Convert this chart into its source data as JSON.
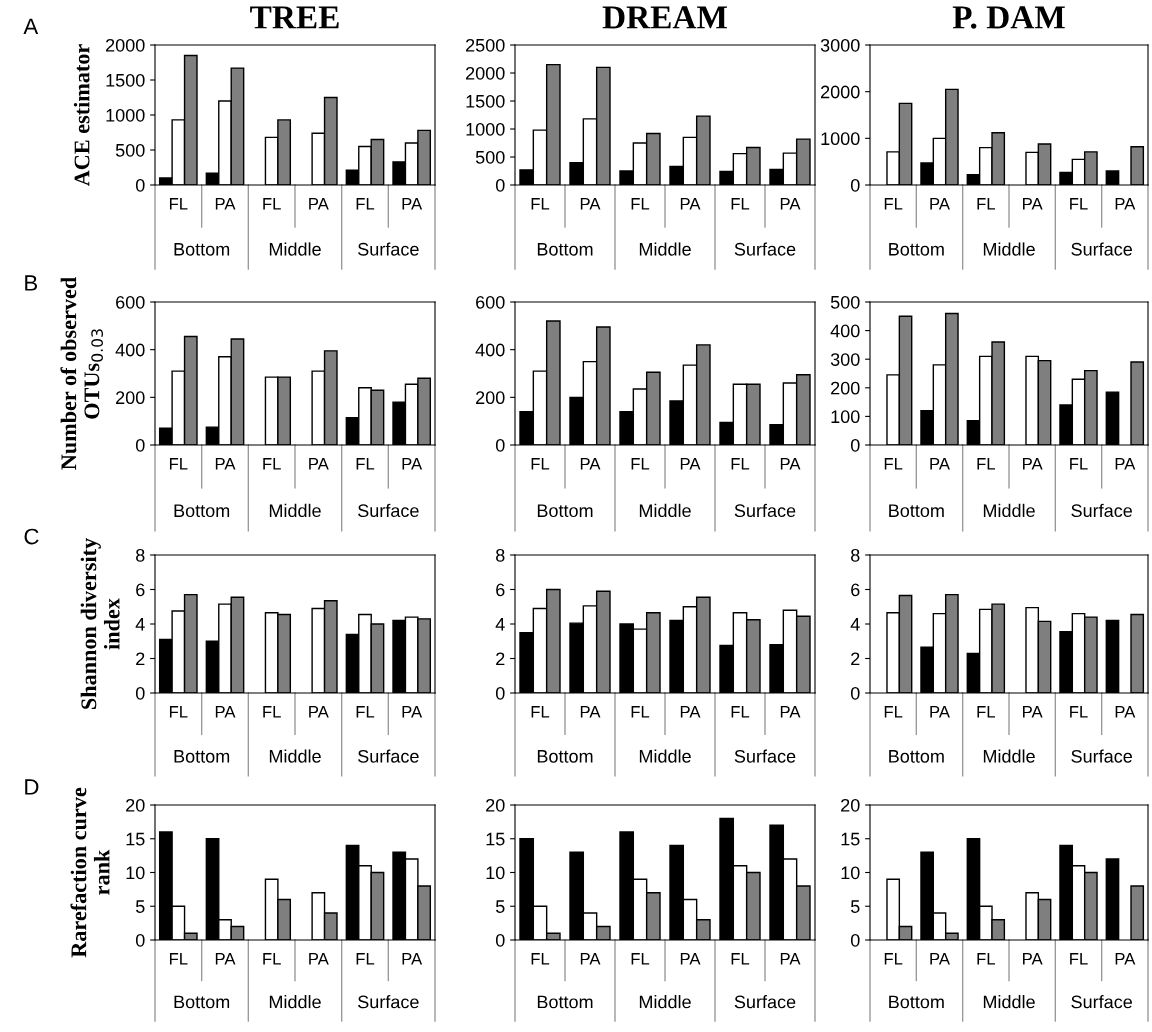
{
  "chart_data": [
    {
      "type": "bar",
      "title": "TREE",
      "ylabel": "ACE estimator",
      "annotations": [
        "A",
        "Bottom",
        "Middle",
        "Surface"
      ],
      "categories": [
        "FL",
        "PA",
        "FL",
        "PA",
        "FL",
        "PA"
      ],
      "ylim": [
        0,
        2000
      ],
      "yticks": [
        0,
        500,
        1000,
        1500,
        2000
      ],
      "grid": false,
      "legend": false,
      "series": [
        {
          "color": "#000000",
          "values": [
            100,
            170,
            null,
            null,
            210,
            330
          ]
        },
        {
          "color": "#ffffff",
          "values": [
            930,
            1200,
            680,
            740,
            550,
            600
          ]
        },
        {
          "color": "#7f7f7f",
          "values": [
            1850,
            1670,
            930,
            1250,
            650,
            780
          ]
        }
      ]
    },
    {
      "type": "bar",
      "title": "DREAM",
      "annotations": [
        "Bottom",
        "Middle",
        "Surface"
      ],
      "categories": [
        "FL",
        "PA",
        "FL",
        "PA",
        "FL",
        "PA"
      ],
      "ylim": [
        0,
        2500
      ],
      "yticks": [
        0,
        500,
        1000,
        1500,
        2000,
        2500
      ],
      "grid": false,
      "legend": false,
      "series": [
        {
          "color": "#000000",
          "values": [
            270,
            400,
            250,
            330,
            240,
            280
          ]
        },
        {
          "color": "#ffffff",
          "values": [
            980,
            1180,
            750,
            850,
            560,
            570
          ]
        },
        {
          "color": "#7f7f7f",
          "values": [
            2150,
            2100,
            920,
            1230,
            670,
            820
          ]
        }
      ]
    },
    {
      "type": "bar",
      "title": "P. DAM",
      "annotations": [
        "Bottom",
        "Middle",
        "Surface"
      ],
      "categories": [
        "FL",
        "PA",
        "FL",
        "PA",
        "FL",
        "PA"
      ],
      "ylim": [
        0,
        3000
      ],
      "yticks": [
        0,
        1000,
        2000,
        3000
      ],
      "grid": false,
      "legend": false,
      "series": [
        {
          "color": "#000000",
          "values": [
            null,
            470,
            220,
            null,
            270,
            300
          ]
        },
        {
          "color": "#ffffff",
          "values": [
            710,
            1000,
            800,
            700,
            550,
            null
          ]
        },
        {
          "color": "#7f7f7f",
          "values": [
            1750,
            2050,
            1120,
            880,
            710,
            820
          ]
        }
      ]
    },
    {
      "type": "bar",
      "ylabel": "Number of observed\nOTUs$_{0.03}$",
      "annotations": [
        "B",
        "Bottom",
        "Middle",
        "Surface"
      ],
      "categories": [
        "FL",
        "PA",
        "FL",
        "PA",
        "FL",
        "PA"
      ],
      "ylim": [
        0,
        600
      ],
      "yticks": [
        0,
        200,
        400,
        600
      ],
      "grid": false,
      "legend": false,
      "series": [
        {
          "color": "#000000",
          "values": [
            70,
            75,
            null,
            null,
            115,
            180
          ]
        },
        {
          "color": "#ffffff",
          "values": [
            310,
            370,
            285,
            310,
            240,
            255
          ]
        },
        {
          "color": "#7f7f7f",
          "values": [
            455,
            445,
            285,
            395,
            230,
            280
          ]
        }
      ]
    },
    {
      "type": "bar",
      "annotations": [
        "Bottom",
        "Middle",
        "Surface"
      ],
      "categories": [
        "FL",
        "PA",
        "FL",
        "PA",
        "FL",
        "PA"
      ],
      "ylim": [
        0,
        600
      ],
      "yticks": [
        0,
        200,
        400,
        600
      ],
      "grid": false,
      "legend": false,
      "series": [
        {
          "color": "#000000",
          "values": [
            140,
            200,
            140,
            185,
            95,
            85
          ]
        },
        {
          "color": "#ffffff",
          "values": [
            310,
            350,
            235,
            335,
            255,
            260
          ]
        },
        {
          "color": "#7f7f7f",
          "values": [
            520,
            495,
            305,
            420,
            255,
            295
          ]
        }
      ]
    },
    {
      "type": "bar",
      "annotations": [
        "Bottom",
        "Middle",
        "Surface"
      ],
      "categories": [
        "FL",
        "PA",
        "FL",
        "PA",
        "FL",
        "PA"
      ],
      "ylim": [
        0,
        500
      ],
      "yticks": [
        0,
        100,
        200,
        300,
        400,
        500
      ],
      "grid": false,
      "legend": false,
      "series": [
        {
          "color": "#000000",
          "values": [
            null,
            120,
            85,
            null,
            140,
            185
          ]
        },
        {
          "color": "#ffffff",
          "values": [
            245,
            280,
            310,
            310,
            230,
            null
          ]
        },
        {
          "color": "#7f7f7f",
          "values": [
            450,
            460,
            360,
            295,
            260,
            290
          ]
        }
      ]
    },
    {
      "type": "bar",
      "ylabel": "Shannon diversity\nindex",
      "annotations": [
        "C",
        "Bottom",
        "Middle",
        "Surface"
      ],
      "categories": [
        "FL",
        "PA",
        "FL",
        "PA",
        "FL",
        "PA"
      ],
      "ylim": [
        0,
        8
      ],
      "yticks": [
        0,
        2,
        4,
        6,
        8
      ],
      "grid": false,
      "legend": false,
      "series": [
        {
          "color": "#000000",
          "values": [
            3.1,
            3.0,
            null,
            null,
            3.4,
            4.2
          ]
        },
        {
          "color": "#ffffff",
          "values": [
            4.75,
            5.15,
            4.65,
            4.9,
            4.55,
            4.4
          ]
        },
        {
          "color": "#7f7f7f",
          "values": [
            5.7,
            5.55,
            4.55,
            5.35,
            4.0,
            4.3
          ]
        }
      ]
    },
    {
      "type": "bar",
      "annotations": [
        "Bottom",
        "Middle",
        "Surface"
      ],
      "categories": [
        "FL",
        "PA",
        "FL",
        "PA",
        "FL",
        "PA"
      ],
      "ylim": [
        0,
        8
      ],
      "yticks": [
        0,
        2,
        4,
        6,
        8
      ],
      "grid": false,
      "legend": false,
      "series": [
        {
          "color": "#000000",
          "values": [
            3.5,
            4.05,
            4.0,
            4.2,
            2.75,
            2.8
          ]
        },
        {
          "color": "#ffffff",
          "values": [
            4.9,
            5.05,
            3.7,
            5.0,
            4.65,
            4.8
          ]
        },
        {
          "color": "#7f7f7f",
          "values": [
            6.0,
            5.9,
            4.65,
            5.55,
            4.25,
            4.45
          ]
        }
      ]
    },
    {
      "type": "bar",
      "annotations": [
        "Bottom",
        "Middle",
        "Surface"
      ],
      "categories": [
        "FL",
        "PA",
        "FL",
        "PA",
        "FL",
        "PA"
      ],
      "ylim": [
        0,
        8
      ],
      "yticks": [
        0,
        2,
        4,
        6,
        8
      ],
      "grid": false,
      "legend": false,
      "series": [
        {
          "color": "#000000",
          "values": [
            null,
            2.65,
            2.3,
            null,
            3.55,
            4.2
          ]
        },
        {
          "color": "#ffffff",
          "values": [
            4.65,
            4.6,
            4.85,
            4.95,
            4.6,
            null
          ]
        },
        {
          "color": "#7f7f7f",
          "values": [
            5.65,
            5.7,
            5.15,
            4.15,
            4.4,
            4.55
          ]
        }
      ]
    },
    {
      "type": "bar",
      "ylabel": "Rarefaction curve\nrank",
      "annotations": [
        "D",
        "Bottom",
        "Middle",
        "Surface"
      ],
      "categories": [
        "FL",
        "PA",
        "FL",
        "PA",
        "FL",
        "PA"
      ],
      "ylim": [
        0,
        20
      ],
      "yticks": [
        0,
        5,
        10,
        15,
        20
      ],
      "grid": false,
      "legend": false,
      "series": [
        {
          "color": "#000000",
          "values": [
            16,
            15,
            null,
            null,
            14,
            13
          ]
        },
        {
          "color": "#ffffff",
          "values": [
            5,
            3,
            9,
            7,
            11,
            12
          ]
        },
        {
          "color": "#7f7f7f",
          "values": [
            1,
            2,
            6,
            4,
            10,
            8
          ]
        }
      ]
    },
    {
      "type": "bar",
      "annotations": [
        "Bottom",
        "Middle",
        "Surface"
      ],
      "categories": [
        "FL",
        "PA",
        "FL",
        "PA",
        "FL",
        "PA"
      ],
      "ylim": [
        0,
        20
      ],
      "yticks": [
        0,
        5,
        10,
        15,
        20
      ],
      "grid": false,
      "legend": false,
      "series": [
        {
          "color": "#000000",
          "values": [
            15,
            13,
            16,
            14,
            18,
            17
          ]
        },
        {
          "color": "#ffffff",
          "values": [
            5,
            4,
            9,
            6,
            11,
            12
          ]
        },
        {
          "color": "#7f7f7f",
          "values": [
            1,
            2,
            7,
            3,
            10,
            8
          ]
        }
      ]
    },
    {
      "type": "bar",
      "annotations": [
        "Bottom",
        "Middle",
        "Surface"
      ],
      "categories": [
        "FL",
        "PA",
        "FL",
        "PA",
        "FL",
        "PA"
      ],
      "ylim": [
        0,
        20
      ],
      "yticks": [
        0,
        5,
        10,
        15,
        20
      ],
      "grid": false,
      "legend": false,
      "series": [
        {
          "color": "#000000",
          "values": [
            null,
            13,
            15,
            null,
            14,
            12
          ]
        },
        {
          "color": "#ffffff",
          "values": [
            9,
            4,
            5,
            7,
            11,
            null
          ]
        },
        {
          "color": "#7f7f7f",
          "values": [
            2,
            1,
            3,
            6,
            10,
            8
          ]
        }
      ]
    }
  ]
}
